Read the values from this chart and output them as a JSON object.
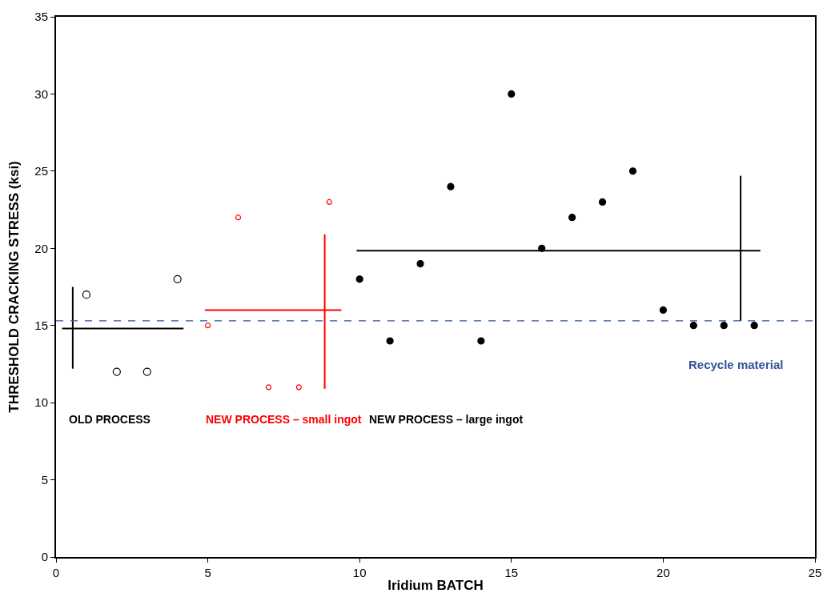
{
  "chart_data": {
    "type": "scatter",
    "xlabel": "Iridium BATCH",
    "ylabel": "THRESHOLD CRACKING STRESS (ksi)",
    "xlim": [
      0,
      25
    ],
    "xticks": [
      0,
      5,
      10,
      15,
      20,
      25
    ],
    "ylim": [
      0,
      35
    ],
    "yticks": [
      0,
      5,
      10,
      15,
      20,
      25,
      30,
      35
    ],
    "legend": false,
    "series": [
      {
        "marker": "circle-open",
        "color": "#000000",
        "x": [
          1,
          2,
          3,
          4
        ],
        "values": [
          17,
          12,
          12,
          18
        ]
      },
      {
        "marker": "circle-open-small",
        "color": "#ff0000",
        "x": [
          5,
          6,
          7,
          8,
          9
        ],
        "values": [
          15,
          22,
          11,
          11,
          23
        ]
      },
      {
        "marker": "circle",
        "color": "#000000",
        "x": [
          10,
          11,
          12,
          13,
          14,
          15,
          16,
          17,
          18,
          19,
          20,
          21,
          22,
          23
        ],
        "values": [
          18,
          14,
          19,
          24,
          14,
          30,
          20,
          22,
          23,
          25,
          16,
          15,
          15,
          15
        ]
      },
      {
        "type": "line",
        "color": "#000000",
        "x": [
          0.2,
          4.2
        ],
        "values": [
          14.8,
          14.8
        ]
      },
      {
        "type": "line",
        "color": "#000000",
        "x": [
          0.55,
          0.55
        ],
        "values": [
          12.2,
          17.5
        ]
      },
      {
        "type": "line",
        "color": "#ff0000",
        "x": [
          4.9,
          9.4
        ],
        "values": [
          16,
          16
        ]
      },
      {
        "type": "line",
        "color": "#ff0000",
        "x": [
          8.85,
          8.85
        ],
        "values": [
          10.9,
          20.9
        ]
      },
      {
        "type": "line",
        "color": "#000000",
        "x": [
          9.9,
          23.2
        ],
        "values": [
          19.85,
          19.85
        ]
      },
      {
        "type": "line",
        "color": "#000000",
        "x": [
          22.55,
          22.55
        ],
        "values": [
          15.3,
          24.7
        ]
      }
    ],
    "ref_lines": [
      {
        "axis": "y",
        "value": 15.3,
        "label": "Recycle material",
        "color": "#2f5597",
        "line_style": "dashed"
      }
    ],
    "annotations": [
      "OLD PROCESS",
      "NEW PROCESS – small ingot",
      "NEW PROCESS – large ingot"
    ]
  }
}
